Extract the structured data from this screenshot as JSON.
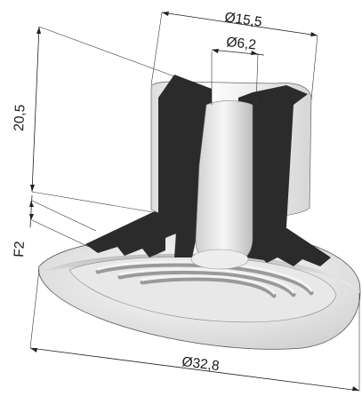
{
  "dimensions": {
    "top_outer_diameter": "Ø15,5",
    "bore_diameter": "Ø6,2",
    "height": "20,5",
    "thread": "F2",
    "base_diameter": "Ø32,8"
  },
  "colors": {
    "body_light": "#f2f2f2",
    "body_shade": "#c9c9c9",
    "section_cut": "#2b2b2b",
    "line": "#222222"
  }
}
